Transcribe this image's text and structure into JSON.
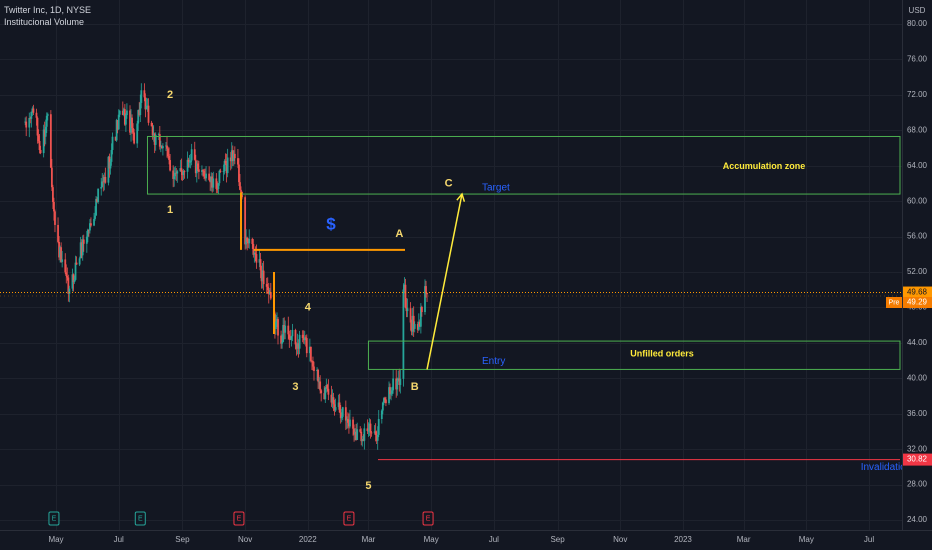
{
  "header": {
    "symbol_line": "Twitter Inc, 1D, NYSE",
    "indicator_line": "Institucional Volume"
  },
  "colors": {
    "background": "#131722",
    "grid": "#1e222d",
    "axis_text": "#b2b5be",
    "candle_up": "#26a69a",
    "candle_down": "#ef5350",
    "zone_line": "#4caf50",
    "annotation_orange": "#ff9800",
    "annotation_yellow": "#ffeb3b",
    "wave_label": "#f5d76e",
    "blue_text": "#2962ff",
    "invalidation_line": "#f23645",
    "earnings_red": "#f23645",
    "earnings_green": "#26a69a",
    "last_price_bg": "#ff9800",
    "pre_price_bg": "#f57c00"
  },
  "chart_data": {
    "type": "candlestick",
    "title": "Twitter Inc, 1D, NYSE",
    "currency": "USD",
    "y_axis": {
      "ticks": [
        80,
        76,
        72,
        68,
        64,
        60,
        56,
        52,
        48,
        44,
        40,
        36,
        32,
        28,
        24
      ],
      "tick_labels": [
        "80.00",
        "76.00",
        "72.00",
        "68.00",
        "64.00",
        "60.00",
        "56.00",
        "52.00",
        "48.00",
        "44.00",
        "40.00",
        "36.00",
        "32.00",
        "28.00",
        "24.00"
      ],
      "range": [
        22.5,
        82
      ]
    },
    "x_axis": {
      "tick_labels": [
        "May",
        "Jul",
        "Sep",
        "Nov",
        "2022",
        "Mar",
        "May",
        "Jul",
        "Sep",
        "Nov",
        "2023",
        "Mar",
        "May",
        "Jul"
      ],
      "tick_months": [
        "2021-05",
        "2021-07",
        "2021-09",
        "2021-11",
        "2022-01",
        "2022-03",
        "2022-05",
        "2022-07",
        "2022-09",
        "2022-11",
        "2023-01",
        "2023-03",
        "2023-05",
        "2023-07"
      ]
    },
    "grid": "on",
    "price_path": [
      [
        "2021-04-01",
        68.0
      ],
      [
        "2021-04-09",
        70.5
      ],
      [
        "2021-04-16",
        65.5
      ],
      [
        "2021-04-23",
        70.0
      ],
      [
        "2021-04-30",
        57.0
      ],
      [
        "2021-05-07",
        52.5
      ],
      [
        "2021-05-14",
        49.5
      ],
      [
        "2021-05-21",
        53.0
      ],
      [
        "2021-05-28",
        55.5
      ],
      [
        "2021-06-04",
        57.5
      ],
      [
        "2021-06-11",
        60.5
      ],
      [
        "2021-06-18",
        62.5
      ],
      [
        "2021-06-25",
        66.5
      ],
      [
        "2021-07-02",
        69.5
      ],
      [
        "2021-07-09",
        69.5
      ],
      [
        "2021-07-16",
        67.5
      ],
      [
        "2021-07-23",
        71.5
      ],
      [
        "2021-07-30",
        69.5
      ],
      [
        "2021-08-06",
        66.5
      ],
      [
        "2021-08-13",
        66.5
      ],
      [
        "2021-08-20",
        64.0
      ],
      [
        "2021-08-27",
        62.5
      ],
      [
        "2021-09-03",
        64.0
      ],
      [
        "2021-09-10",
        65.5
      ],
      [
        "2021-09-17",
        62.5
      ],
      [
        "2021-09-24",
        63.5
      ],
      [
        "2021-10-01",
        61.5
      ],
      [
        "2021-10-08",
        62.5
      ],
      [
        "2021-10-15",
        64.5
      ],
      [
        "2021-10-22",
        65.5
      ],
      [
        "2021-10-28",
        61.0
      ],
      [
        "2021-11-01",
        55.5
      ],
      [
        "2021-11-08",
        54.5
      ],
      [
        "2021-11-15",
        52.5
      ],
      [
        "2021-11-22",
        50.5
      ],
      [
        "2021-11-29",
        46.5
      ],
      [
        "2021-12-06",
        45.0
      ],
      [
        "2021-12-13",
        45.5
      ],
      [
        "2021-12-20",
        43.5
      ],
      [
        "2021-12-27",
        44.5
      ],
      [
        "2022-01-03",
        43.0
      ],
      [
        "2022-01-10",
        40.5
      ],
      [
        "2022-01-17",
        38.5
      ],
      [
        "2022-01-24",
        37.5
      ],
      [
        "2022-01-31",
        37.0
      ],
      [
        "2022-02-07",
        35.5
      ],
      [
        "2022-02-14",
        34.5
      ],
      [
        "2022-02-21",
        33.5
      ],
      [
        "2022-02-28",
        34.5
      ],
      [
        "2022-03-07",
        33.0
      ],
      [
        "2022-03-14",
        36.5
      ],
      [
        "2022-03-21",
        38.5
      ],
      [
        "2022-03-28",
        39.5
      ],
      [
        "2022-04-01",
        40.0
      ],
      [
        "2022-04-04",
        50.5
      ],
      [
        "2022-04-08",
        47.0
      ],
      [
        "2022-04-13",
        46.0
      ],
      [
        "2022-04-18",
        45.0
      ],
      [
        "2022-04-22",
        48.0
      ],
      [
        "2022-04-25",
        51.5
      ],
      [
        "2022-04-27",
        49.5
      ]
    ],
    "series": [
      {
        "name": "Pre",
        "values": [
          49.29
        ]
      }
    ],
    "last_price": "49.68",
    "pre_market": {
      "label": "Pre",
      "value": "49.29"
    },
    "invalidation_price": "30.82",
    "earnings_markers": [
      {
        "date": "2021-04-29",
        "label": "E",
        "color": "green"
      },
      {
        "date": "2021-07-22",
        "label": "E",
        "color": "green"
      },
      {
        "date": "2021-10-26",
        "label": "E",
        "color": "red"
      },
      {
        "date": "2022-02-10",
        "label": "E",
        "color": "red"
      },
      {
        "date": "2022-04-28",
        "label": "E",
        "color": "red"
      }
    ],
    "annotations": {
      "zones": [
        {
          "label": "Accumulation zone",
          "from_date": "2021-07-29",
          "top": 67.3,
          "bottom": 60.8
        },
        {
          "label": "Unfilled orders",
          "from_date": "2022-03-01",
          "top": 44.2,
          "bottom": 41.0
        }
      ],
      "zone_labels": [
        "Target",
        "Entry"
      ],
      "wave_labels": [
        {
          "text": "1",
          "date": "2021-08-20",
          "price": 59.0
        },
        {
          "text": "2",
          "date": "2021-08-20",
          "price": 72.0
        },
        {
          "text": "3",
          "date": "2021-12-20",
          "price": 39.0
        },
        {
          "text": "4",
          "date": "2022-01-01",
          "price": 48.0
        },
        {
          "text": "5",
          "date": "2022-03-01",
          "price": 27.8
        },
        {
          "text": "A",
          "date": "2022-03-31",
          "price": 56.3
        },
        {
          "text": "B",
          "date": "2022-04-15",
          "price": 39.0
        },
        {
          "text": "C",
          "date": "2022-05-18",
          "price": 62.0
        }
      ],
      "dollar_sign": "$",
      "invalidation_label": "Invalidation",
      "orange_level": 54.5,
      "projection": {
        "from": [
          "2022-04-27",
          41.0
        ],
        "to": [
          "2022-05-31",
          60.8
        ]
      }
    }
  }
}
